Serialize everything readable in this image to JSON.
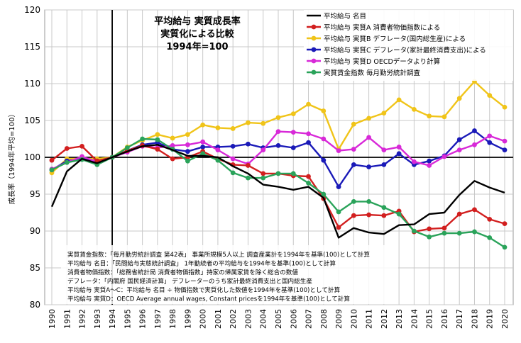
{
  "chart_data": {
    "type": "line",
    "title_lines": [
      "平均給与 実質成長率",
      "実質化による比較",
      "1994年=100"
    ],
    "ylabel": "成長率（1994年平均=100）",
    "xlabel": "",
    "ylim": [
      80,
      120
    ],
    "yticks": [
      80,
      85,
      90,
      95,
      100,
      105,
      110,
      115,
      120
    ],
    "x": [
      1990,
      1991,
      1992,
      1993,
      1994,
      1995,
      1996,
      1997,
      1998,
      1999,
      2000,
      2001,
      2002,
      2003,
      2004,
      2005,
      2006,
      2007,
      2008,
      2009,
      2010,
      2011,
      2012,
      2013,
      2014,
      2015,
      2016,
      2017,
      2018,
      2019,
      2020
    ],
    "x_labels": [
      "1990",
      "1991",
      "1992",
      "1993",
      "1994",
      "1995",
      "1996",
      "1997",
      "1998",
      "1999",
      "2000",
      "2001",
      "2002",
      "2003",
      "2004",
      "2005",
      "2006",
      "2007",
      "2008",
      "2009",
      "2010",
      "2011",
      "2012",
      "2013",
      "2014",
      "2015",
      "2016",
      "2017",
      "2018",
      "2019",
      "2020"
    ],
    "grid": true,
    "reference_lines": {
      "x": 1994,
      "y": 100
    },
    "legend_position": "top-right",
    "series": [
      {
        "name": "平均給与 名目",
        "color": "#000000",
        "marker": false,
        "values": [
          93.3,
          98.1,
          99.8,
          99.2,
          100.0,
          100.8,
          101.5,
          101.7,
          101.0,
          100.2,
          100.2,
          100.0,
          98.8,
          97.8,
          96.3,
          96.0,
          95.6,
          96.0,
          94.5,
          89.1,
          90.4,
          89.8,
          89.6,
          90.8,
          90.9,
          92.3,
          92.5,
          94.9,
          96.8,
          95.9,
          95.2
        ]
      },
      {
        "name": "平均給与 実質A 消費者物価指数による",
        "color": "#d21f1f",
        "marker": true,
        "values": [
          99.6,
          101.2,
          101.5,
          99.5,
          100.0,
          100.9,
          101.6,
          101.1,
          99.8,
          100.0,
          100.8,
          99.8,
          99.0,
          98.9,
          97.8,
          97.8,
          97.5,
          97.4,
          94.4,
          90.5,
          92.1,
          92.2,
          92.1,
          92.7,
          89.9,
          90.3,
          90.4,
          92.3,
          92.9,
          91.6,
          91.0
        ]
      },
      {
        "name": "平均給与 実質B デフレータ(国内総生産)による",
        "color": "#f0c419",
        "marker": true,
        "values": [
          97.9,
          99.8,
          99.8,
          99.8,
          100.0,
          101.4,
          102.3,
          103.1,
          102.6,
          103.1,
          104.4,
          104.0,
          103.9,
          104.7,
          104.6,
          105.4,
          105.9,
          107.2,
          106.3,
          101.1,
          104.5,
          105.3,
          106.0,
          107.8,
          106.5,
          105.6,
          105.5,
          108.0,
          110.3,
          108.4,
          106.8
        ]
      },
      {
        "name": "平均給与 実質C デフレータ(家計最終消費支出)による",
        "color": "#1a1ab8",
        "marker": true,
        "values": [
          98.3,
          99.5,
          99.8,
          99.5,
          100.0,
          100.9,
          101.7,
          102.0,
          101.1,
          100.8,
          101.4,
          101.4,
          101.5,
          101.8,
          101.3,
          101.6,
          101.3,
          102.0,
          99.6,
          96.0,
          99.0,
          98.7,
          99.0,
          100.5,
          99.0,
          99.5,
          100.2,
          102.4,
          103.6,
          102.0,
          101.0
        ]
      },
      {
        "name": "平均給与 実質D OECDデータより計算",
        "color": "#d829d8",
        "marker": true,
        "values": [
          98.4,
          99.3,
          100.1,
          99.4,
          100.0,
          100.7,
          101.5,
          101.3,
          101.6,
          101.7,
          102.1,
          101.0,
          99.8,
          99.1,
          101.0,
          103.5,
          103.4,
          103.2,
          102.5,
          100.9,
          101.1,
          102.7,
          101.0,
          101.4,
          99.4,
          98.9,
          100.1,
          101.0,
          101.7,
          102.9,
          102.2
        ]
      },
      {
        "name": "実質賃金指数 毎月勤労統計調査",
        "color": "#2aa35a",
        "marker": true,
        "values": [
          98.3,
          99.3,
          99.7,
          99.0,
          100.0,
          101.3,
          102.5,
          102.4,
          101.1,
          99.5,
          100.5,
          99.6,
          97.9,
          97.2,
          97.2,
          97.8,
          97.8,
          96.5,
          95.0,
          92.6,
          94.0,
          94.0,
          93.2,
          92.3,
          90.0,
          89.2,
          89.7,
          89.7,
          89.9,
          89.1,
          87.8
        ]
      }
    ],
    "notes": [
      "実質賃金指数：「毎月勤労統計調査 第42表」 事業所規模5人以上 調査産業計を1994年を基準(100)として計算",
      "平均給与 名目：「民間給与実態統計調査」 1年勤続者の平均給与を1994年を基準(100)として計算",
      "消費者物価指数：「総務省統計局 消費者物価指数」持家の帰属家賃を除く総合の数値",
      "デフレータ：「内閣府 国民経済計算」 デフレーターのうち家計最終消費支出と国内総生産",
      "平均給与 実質A～C：平均給与 名目 ÷ 物価指数で実質化した数値を1994年を基準(100)として計算",
      "平均給与 実質D：OECD Average annual wages, Constant pricesを1994年を基準(100)として計算"
    ]
  }
}
